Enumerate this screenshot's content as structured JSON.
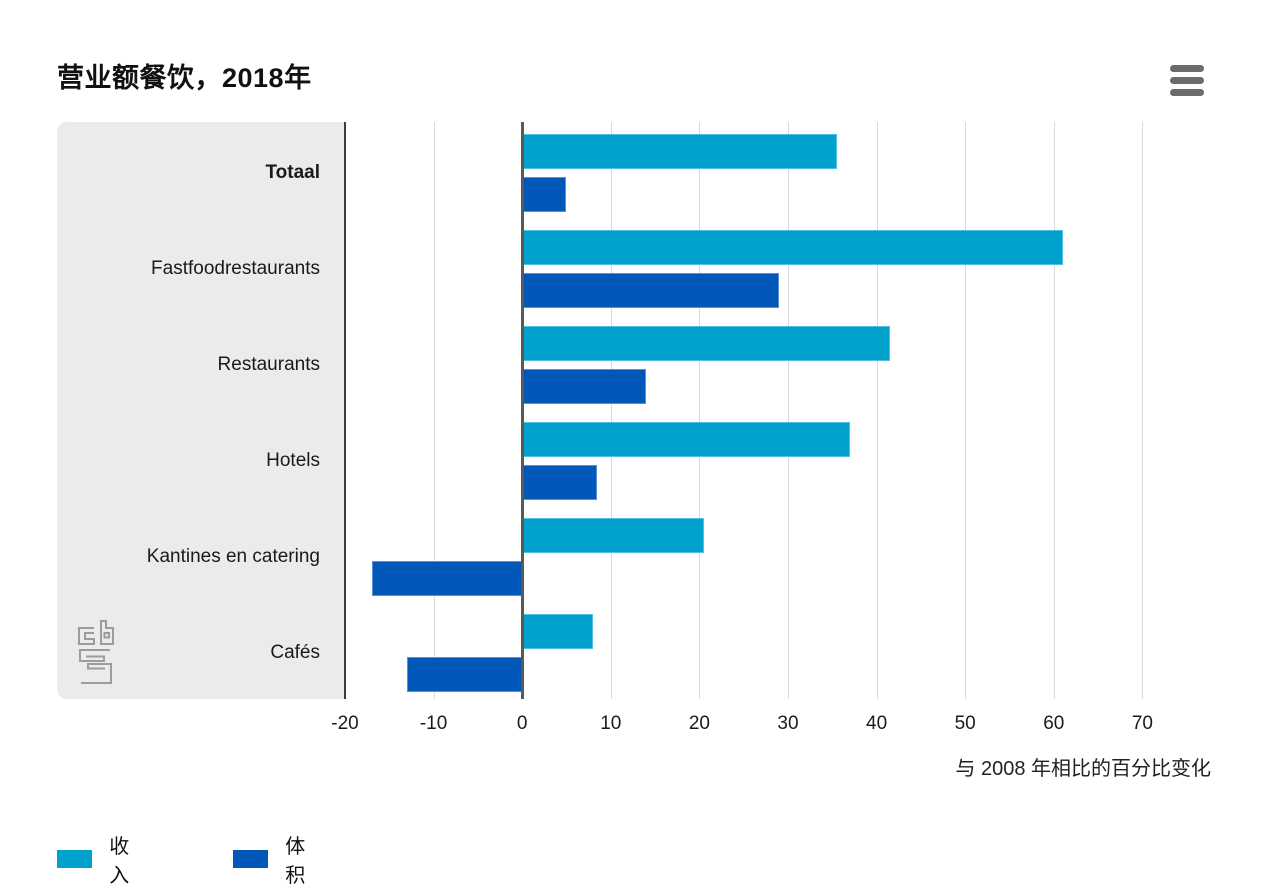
{
  "chart_data": {
    "type": "bar",
    "orientation": "horizontal",
    "title": "营业额餐饮，2018年",
    "categories": [
      "Totaal",
      "Fastfoodrestaurants",
      "Restaurants",
      "Hotels",
      "Kantines en catering",
      "Cafés"
    ],
    "bold_category": "Totaal",
    "series": [
      {
        "name": "收入",
        "color": "#00a1cd",
        "values": [
          35.5,
          61,
          41.5,
          37,
          20.5,
          8
        ]
      },
      {
        "name": "体积",
        "color": "#0058b8",
        "values": [
          5,
          29,
          14,
          8.5,
          -17,
          -13
        ]
      }
    ],
    "xlabel": "与 2008 年相比的百分比变化",
    "x_ticks": [
      -20,
      -10,
      0,
      10,
      20,
      30,
      40,
      50,
      60,
      70
    ],
    "xlim": [
      -20,
      78
    ],
    "grid": true,
    "legend_position": "bottom-left"
  },
  "branding": {
    "logo_text": "cbs"
  },
  "colors": {
    "income_bar": "#00a1cd",
    "volume_bar": "#0058b8",
    "panel_bg": "#eceaea",
    "gridline": "#d9d9d9",
    "zero_line": "#59595b",
    "axis_edge": "#3c3c3c",
    "menu_icon": "#6b6b6b",
    "logo": "#9c9c9c",
    "text": "#1a1a1a"
  }
}
